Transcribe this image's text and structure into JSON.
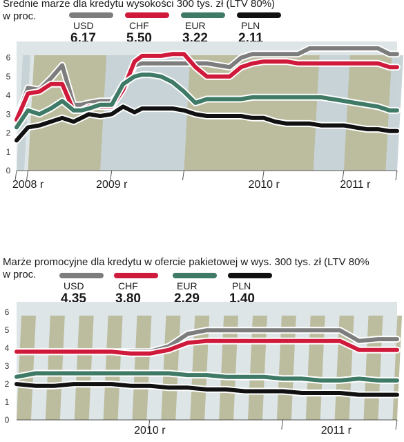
{
  "chart_data": [
    {
      "type": "line",
      "title": "Średnie marże dla kredytu wysokości 300 tys. zł (LTV 80%)",
      "unit_label": "w proc.",
      "ylim": [
        0,
        6.5
      ],
      "yticks": [
        "0",
        "1",
        "2",
        "3",
        "4",
        "5",
        "6"
      ],
      "xlim": [
        0,
        100
      ],
      "x_labels": [
        {
          "label": "2008 r",
          "x": 3
        },
        {
          "label": "2009 r",
          "x": 25
        },
        {
          "label": "2010 r",
          "x": 65
        },
        {
          "label": "2011 r",
          "x": 89
        }
      ],
      "x": [
        0,
        3,
        6,
        9,
        12,
        15,
        17,
        19,
        22,
        25,
        28,
        31,
        33,
        35,
        38,
        41,
        44,
        47,
        50,
        53,
        56,
        59,
        62,
        65,
        68,
        71,
        74,
        77,
        80,
        83,
        86,
        89,
        92,
        95,
        98,
        100
      ],
      "series": [
        {
          "name": "USD",
          "latest": "6,17",
          "color": "#7d7d7d",
          "values": [
            2.8,
            4.4,
            4.3,
            4.9,
            5.6,
            3.5,
            3.5,
            3.6,
            3.7,
            3.7,
            4.3,
            5.6,
            5.7,
            5.7,
            5.7,
            5.7,
            5.7,
            5.7,
            5.7,
            5.6,
            5.5,
            6.0,
            6.2,
            6.2,
            6.2,
            6.2,
            6.2,
            6.5,
            6.5,
            6.5,
            6.5,
            6.5,
            6.5,
            6.5,
            6.2,
            6.2
          ]
        },
        {
          "name": "CHF",
          "latest": "5,50",
          "color": "#cf1a3b",
          "values": [
            2.7,
            4.1,
            4.2,
            4.6,
            4.6,
            3.2,
            3.2,
            3.4,
            3.4,
            3.4,
            4.3,
            5.8,
            6.1,
            6.1,
            6.1,
            6.2,
            6.2,
            5.5,
            5.0,
            5.0,
            5.0,
            5.5,
            5.7,
            5.8,
            5.8,
            5.8,
            5.7,
            5.7,
            5.7,
            5.7,
            5.7,
            5.7,
            5.7,
            5.7,
            5.5,
            5.5
          ]
        },
        {
          "name": "EUR",
          "latest": "3,22",
          "color": "#3e7a66",
          "values": [
            2.3,
            3.2,
            3.0,
            3.3,
            3.7,
            3.2,
            3.2,
            3.3,
            3.5,
            3.5,
            4.6,
            5.0,
            5.1,
            5.1,
            5.0,
            4.7,
            4.2,
            3.6,
            3.8,
            3.8,
            3.8,
            3.8,
            3.9,
            3.9,
            3.9,
            3.9,
            3.9,
            3.9,
            3.9,
            3.8,
            3.7,
            3.6,
            3.5,
            3.4,
            3.2,
            3.2
          ]
        },
        {
          "name": "PLN",
          "latest": "2,11",
          "color": "#111111",
          "values": [
            1.6,
            2.3,
            2.4,
            2.6,
            2.8,
            2.6,
            2.8,
            3.0,
            2.9,
            3.0,
            3.4,
            3.1,
            3.3,
            3.3,
            3.3,
            3.3,
            3.2,
            3.0,
            2.9,
            2.9,
            2.9,
            2.9,
            2.8,
            2.8,
            2.6,
            2.5,
            2.5,
            2.5,
            2.4,
            2.4,
            2.4,
            2.3,
            2.2,
            2.2,
            2.1,
            2.1
          ]
        }
      ]
    },
    {
      "type": "line",
      "title": "Marże promocyjne dla kredytu w ofercie pakietowej w wys. 300 tys. zł (LTV 80%",
      "unit_label": "w proc.",
      "ylim": [
        0,
        6.2
      ],
      "yticks": [
        "0",
        "1",
        "2",
        "3",
        "4",
        "5",
        "6"
      ],
      "xlim": [
        0,
        100
      ],
      "x_labels": [
        {
          "label": "2010 r",
          "x": 35
        },
        {
          "label": "2011 r",
          "x": 84
        }
      ],
      "x": [
        0,
        5,
        10,
        15,
        20,
        25,
        30,
        35,
        40,
        45,
        50,
        55,
        60,
        65,
        70,
        75,
        80,
        85,
        90,
        95,
        100
      ],
      "series": [
        {
          "name": "USD",
          "latest": "4,35",
          "color": "#7d7d7d",
          "values": [
            3.8,
            3.8,
            3.8,
            3.8,
            3.8,
            3.8,
            3.8,
            3.8,
            4.1,
            4.8,
            5.0,
            5.0,
            5.0,
            5.0,
            5.0,
            5.0,
            5.0,
            5.0,
            4.4,
            4.5,
            4.5
          ]
        },
        {
          "name": "CHF",
          "latest": "3,80",
          "color": "#cf1a3b",
          "values": [
            3.8,
            3.8,
            3.8,
            3.8,
            3.8,
            3.8,
            3.7,
            3.7,
            3.9,
            4.3,
            4.4,
            4.4,
            4.4,
            4.4,
            4.4,
            4.4,
            4.4,
            4.4,
            3.9,
            3.9,
            3.9
          ]
        },
        {
          "name": "EUR",
          "latest": "2,29",
          "color": "#3e7a66",
          "values": [
            2.4,
            2.6,
            2.6,
            2.6,
            2.6,
            2.6,
            2.6,
            2.6,
            2.6,
            2.5,
            2.5,
            2.4,
            2.4,
            2.4,
            2.3,
            2.3,
            2.2,
            2.2,
            2.3,
            2.2,
            2.2
          ]
        },
        {
          "name": "PLN",
          "latest": "1,40",
          "color": "#111111",
          "values": [
            2.0,
            1.9,
            1.9,
            2.0,
            2.0,
            2.0,
            1.9,
            1.9,
            1.8,
            1.8,
            1.7,
            1.7,
            1.6,
            1.6,
            1.6,
            1.5,
            1.5,
            1.5,
            1.4,
            1.4,
            1.4
          ]
        }
      ]
    }
  ]
}
